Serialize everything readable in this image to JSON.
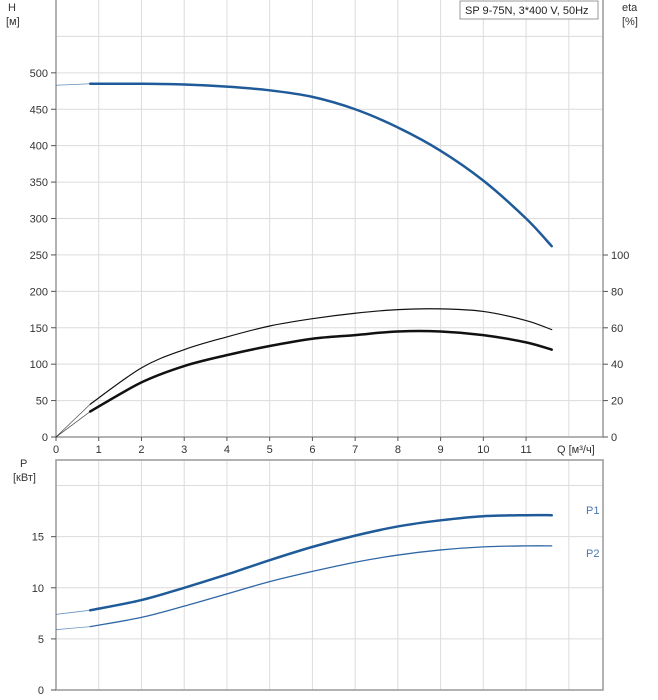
{
  "chart_data": [
    {
      "type": "line",
      "title": "SP 9-75N, 3*400 V, 50Hz",
      "xlabel": "Q [м³/ч]",
      "ylabel": "H [м]",
      "ylabel_unit": "[м]",
      "ylabel_name": "H",
      "y2label_name": "eta",
      "y2label_unit": "[%]",
      "xlim": [
        0,
        12.8
      ],
      "ylim": [
        0,
        600
      ],
      "y2lim": [
        0,
        100
      ],
      "xticks": [
        0,
        1,
        2,
        3,
        4,
        5,
        6,
        7,
        8,
        9,
        10,
        11
      ],
      "yticks": [
        0,
        50,
        100,
        150,
        200,
        250,
        300,
        350,
        400,
        450,
        500
      ],
      "y2ticks": [
        0,
        20,
        40,
        60,
        80,
        100
      ],
      "grid": true,
      "colors": {
        "head": "#1f5b99",
        "eta": "#111111"
      },
      "series": [
        {
          "axis": "H",
          "color": "#1f5b99",
          "x": [
            0.8,
            2,
            3,
            4,
            5,
            6,
            7,
            8,
            9,
            10,
            11,
            11.6
          ],
          "values": [
            485,
            485,
            484,
            481,
            476,
            467,
            450,
            425,
            393,
            352,
            300,
            262
          ],
          "lead": {
            "x": [
              0,
              0.8
            ],
            "values": [
              483,
              485
            ]
          }
        },
        {
          "axis": "eta",
          "color": "#111111",
          "x": [
            0.8,
            2,
            3,
            4,
            5,
            6,
            7,
            8,
            9,
            10,
            11,
            11.6
          ],
          "values": [
            18,
            38,
            48,
            55,
            61,
            65,
            68,
            70,
            70.4,
            69,
            64,
            59
          ],
          "lead": {
            "x": [
              0,
              0.8
            ],
            "values": [
              0,
              18
            ]
          }
        },
        {
          "axis": "eta",
          "color": "#111111",
          "thick": true,
          "x": [
            0.8,
            2,
            3,
            4,
            5,
            6,
            7,
            8,
            9,
            10,
            11,
            11.6
          ],
          "values": [
            14,
            30,
            39,
            45,
            50,
            54,
            56,
            58,
            58,
            56,
            52,
            48
          ],
          "lead": {
            "x": [
              0,
              0.8
            ],
            "values": [
              0,
              14
            ]
          }
        }
      ]
    },
    {
      "type": "line",
      "ylabel_name": "P",
      "ylabel_unit": "[кВт]",
      "xlim": [
        0,
        12.8
      ],
      "ylim": [
        0,
        22.5
      ],
      "yticks": [
        0,
        5,
        10,
        15
      ],
      "grid": true,
      "series": [
        {
          "name": "P1",
          "color": "#1f5b99",
          "x": [
            0.8,
            2,
            3,
            4,
            5,
            6,
            7,
            8,
            9,
            10,
            11,
            11.6
          ],
          "values": [
            7.8,
            8.8,
            10,
            11.3,
            12.7,
            14,
            15.1,
            16,
            16.6,
            17,
            17.1,
            17.1
          ],
          "lead": {
            "x": [
              0,
              0.8
            ],
            "values": [
              7.4,
              7.8
            ]
          }
        },
        {
          "name": "P2",
          "color": "#2f67a6",
          "x": [
            0.8,
            2,
            3,
            4,
            5,
            6,
            7,
            8,
            9,
            10,
            11,
            11.6
          ],
          "values": [
            6.2,
            7.1,
            8.2,
            9.4,
            10.6,
            11.6,
            12.5,
            13.2,
            13.7,
            14,
            14.1,
            14.1
          ],
          "lead": {
            "x": [
              0,
              0.8
            ],
            "values": [
              5.9,
              6.2
            ]
          }
        }
      ]
    }
  ]
}
